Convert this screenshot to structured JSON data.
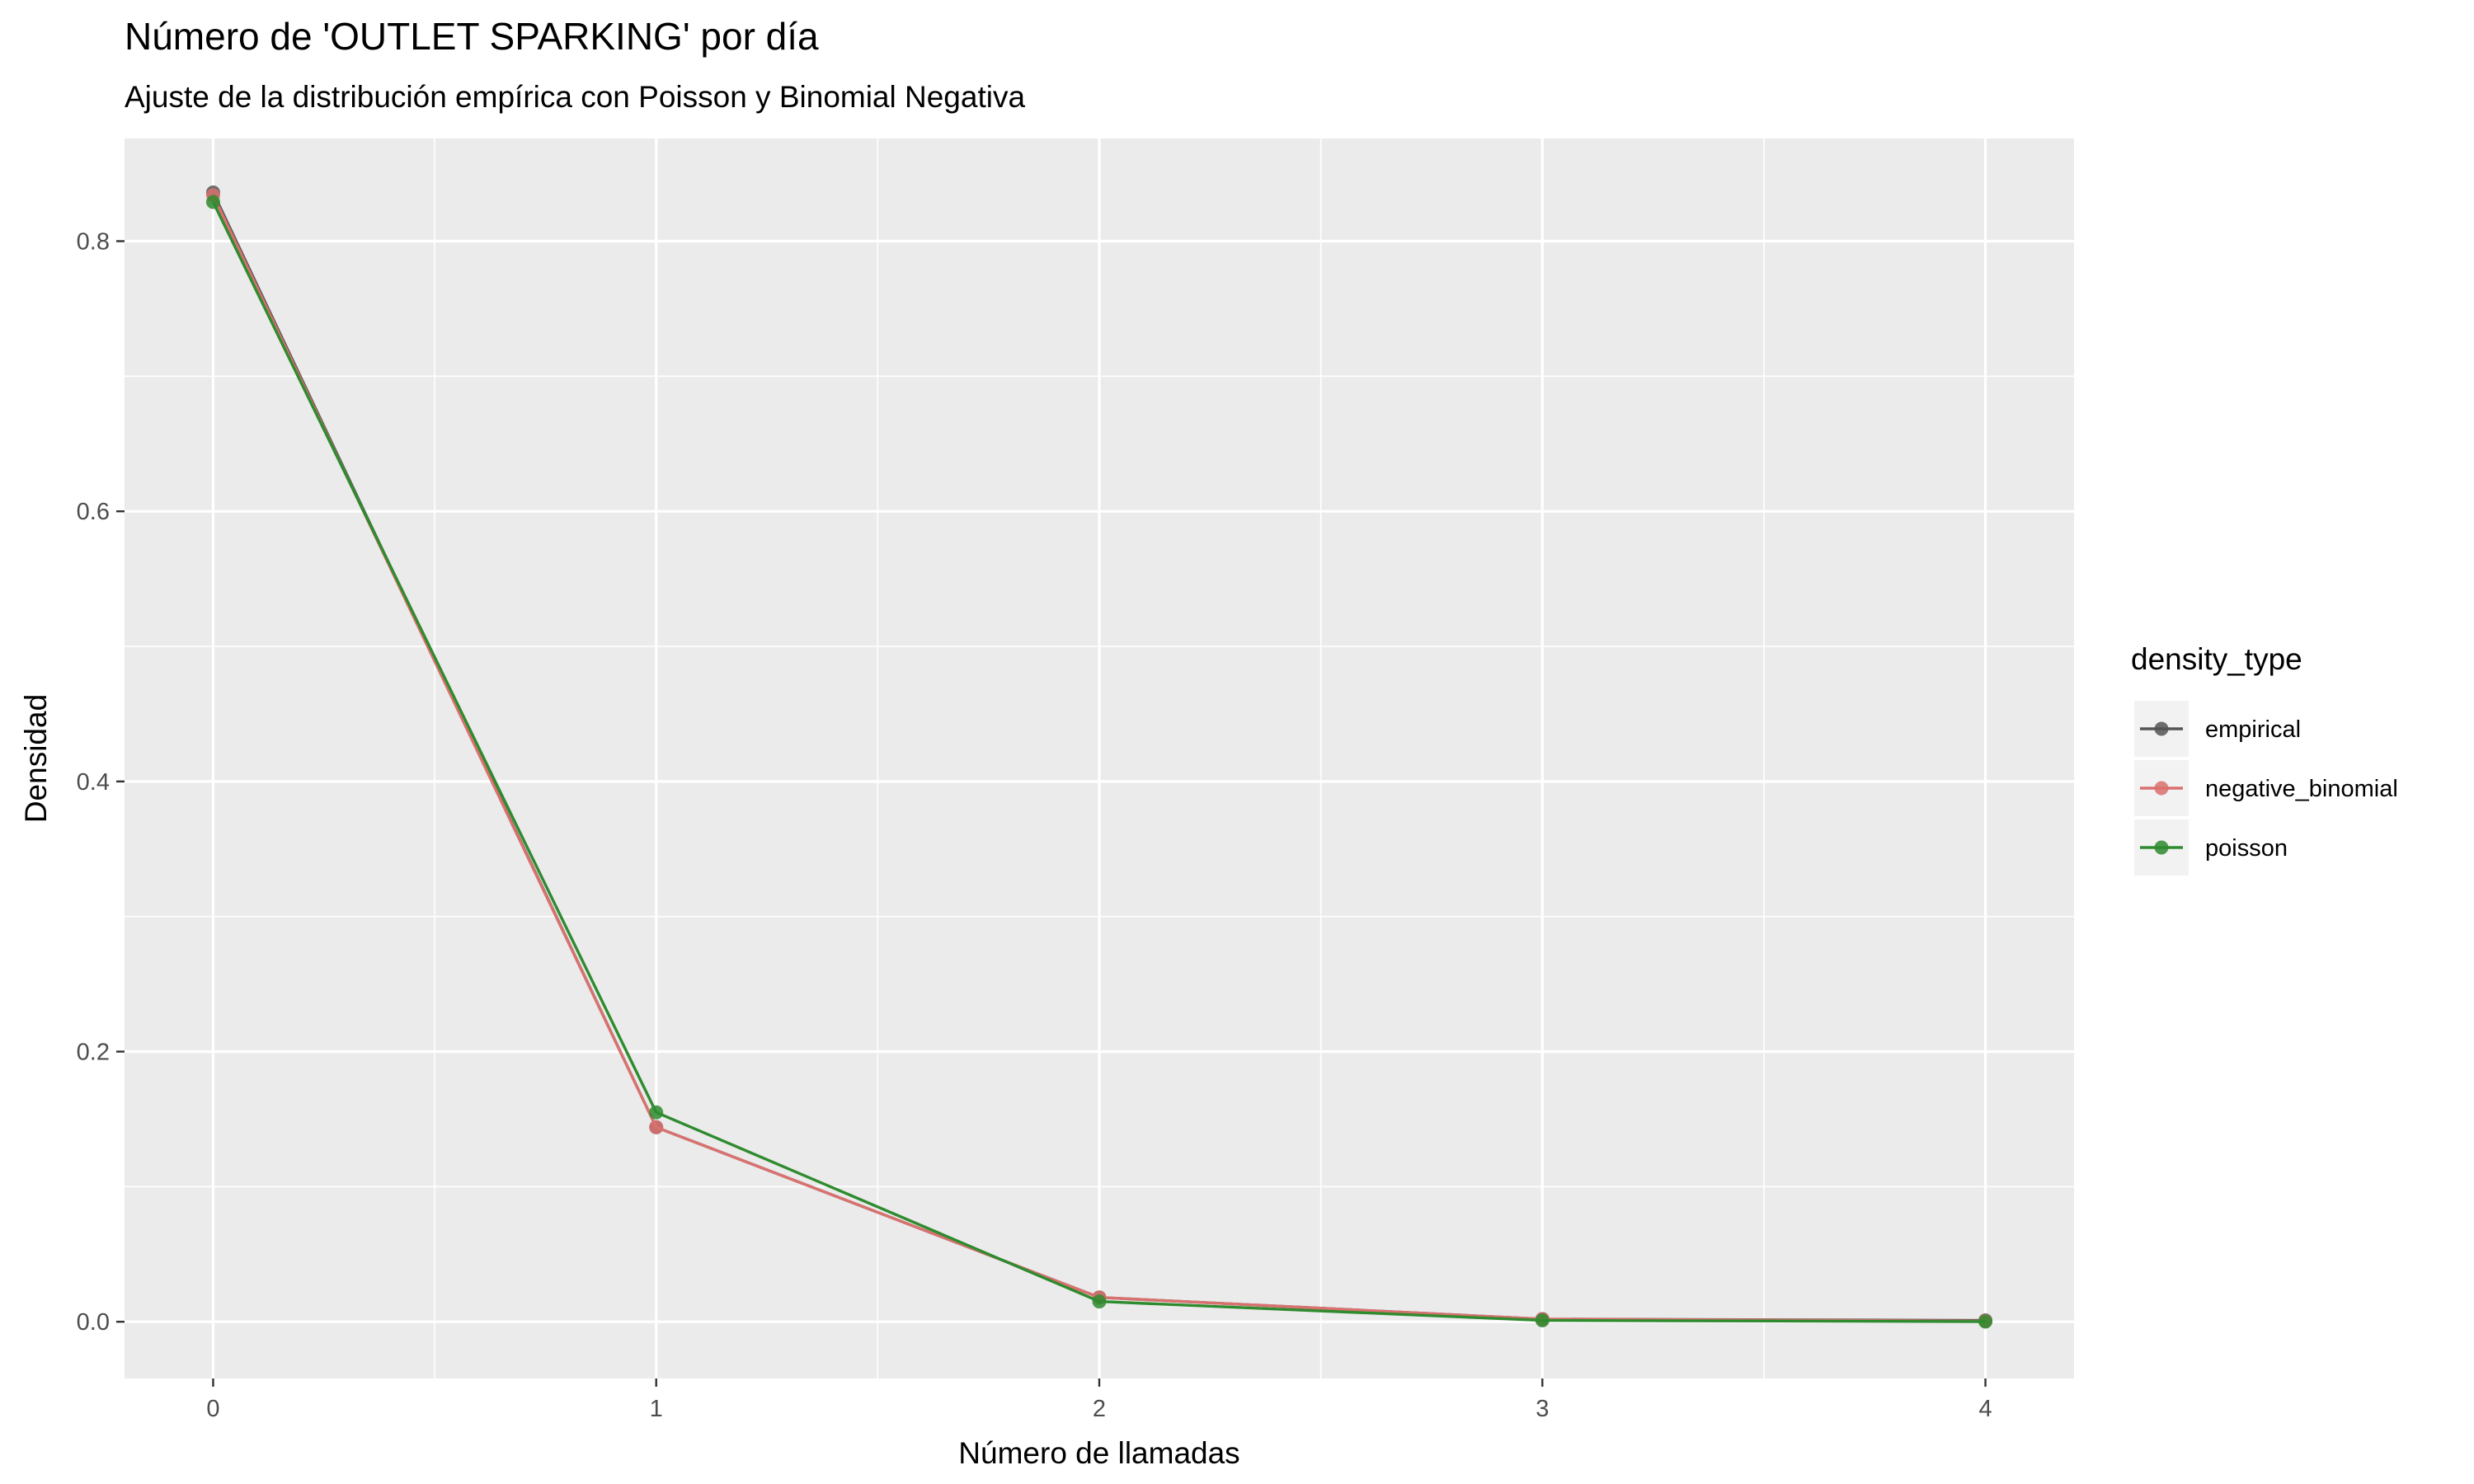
{
  "chart_data": {
    "type": "line",
    "title": "Número de 'OUTLET SPARKING' por día",
    "subtitle": "Ajuste de la distribución empírica con Poisson y Binomial Negativa",
    "xlabel": "Número de llamadas",
    "ylabel": "Densidad",
    "x": [
      0,
      1,
      2,
      3,
      4
    ],
    "x_tick_labels": [
      "0",
      "1",
      "2",
      "3",
      "4"
    ],
    "y_tick_labels": [
      "0.0",
      "0.2",
      "0.4",
      "0.6",
      "0.8"
    ],
    "y_ticks": [
      0.0,
      0.2,
      0.4,
      0.6,
      0.8
    ],
    "xlim": [
      -0.2,
      4.2
    ],
    "ylim": [
      -0.042,
      0.876
    ],
    "grid": true,
    "legend_title": "density_type",
    "legend_position": "right",
    "series": [
      {
        "name": "empirical",
        "color": "#555555",
        "values": [
          0.836,
          0.144,
          0.018,
          0.002,
          0.001
        ]
      },
      {
        "name": "negative_binomial",
        "color": "#D9716F",
        "values": [
          0.834,
          0.144,
          0.018,
          0.002,
          0.0005
        ]
      },
      {
        "name": "poisson",
        "color": "#2E8B2E",
        "values": [
          0.829,
          0.155,
          0.015,
          0.001,
          0.0001
        ]
      }
    ],
    "panel_background": "#EBEBEB",
    "grid_color": "#FFFFFF"
  }
}
